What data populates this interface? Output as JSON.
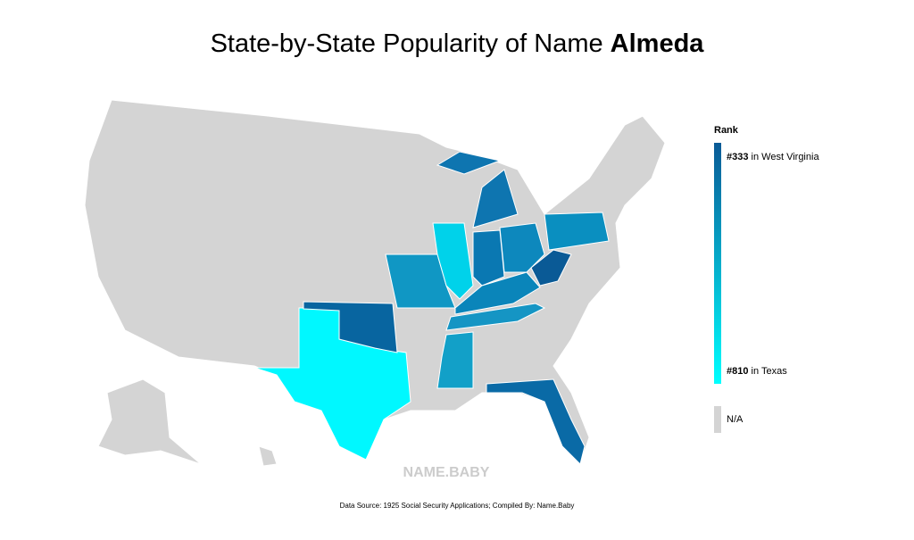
{
  "header": {
    "title": "State-by-State Popularity of Name ",
    "name": "Almeda"
  },
  "map": {
    "regions": [
      {
        "color": "#00f8ff"
      },
      {
        "color": "#0865a0"
      },
      {
        "color": "#1097c4"
      },
      {
        "color": "#00d2ea"
      },
      {
        "color": "#0a78b2"
      },
      {
        "color": "#0d88bd"
      },
      {
        "color": "#0e75b0"
      },
      {
        "color": "#0e75b0"
      },
      {
        "color": "#0a8fc0"
      },
      {
        "color": "#0a5a96"
      },
      {
        "color": "#0a85ba"
      },
      {
        "color": "#1595c4"
      },
      {
        "color": "#12a0c8"
      },
      {
        "color": "#0a6aa6"
      }
    ],
    "na_color": "#d4d4d4"
  },
  "legend": {
    "title": "Rank",
    "top": {
      "rank": "#333",
      "place": " in West Virginia",
      "color": "#0a5a96"
    },
    "bottom": {
      "rank": "#810",
      "place": " in Texas",
      "color": "#00ffff"
    },
    "na": "N/A"
  },
  "watermark": "NAME.BABY",
  "footer": "Data Source: 1925 Social Security Applications; Compiled By: Name.Baby"
}
